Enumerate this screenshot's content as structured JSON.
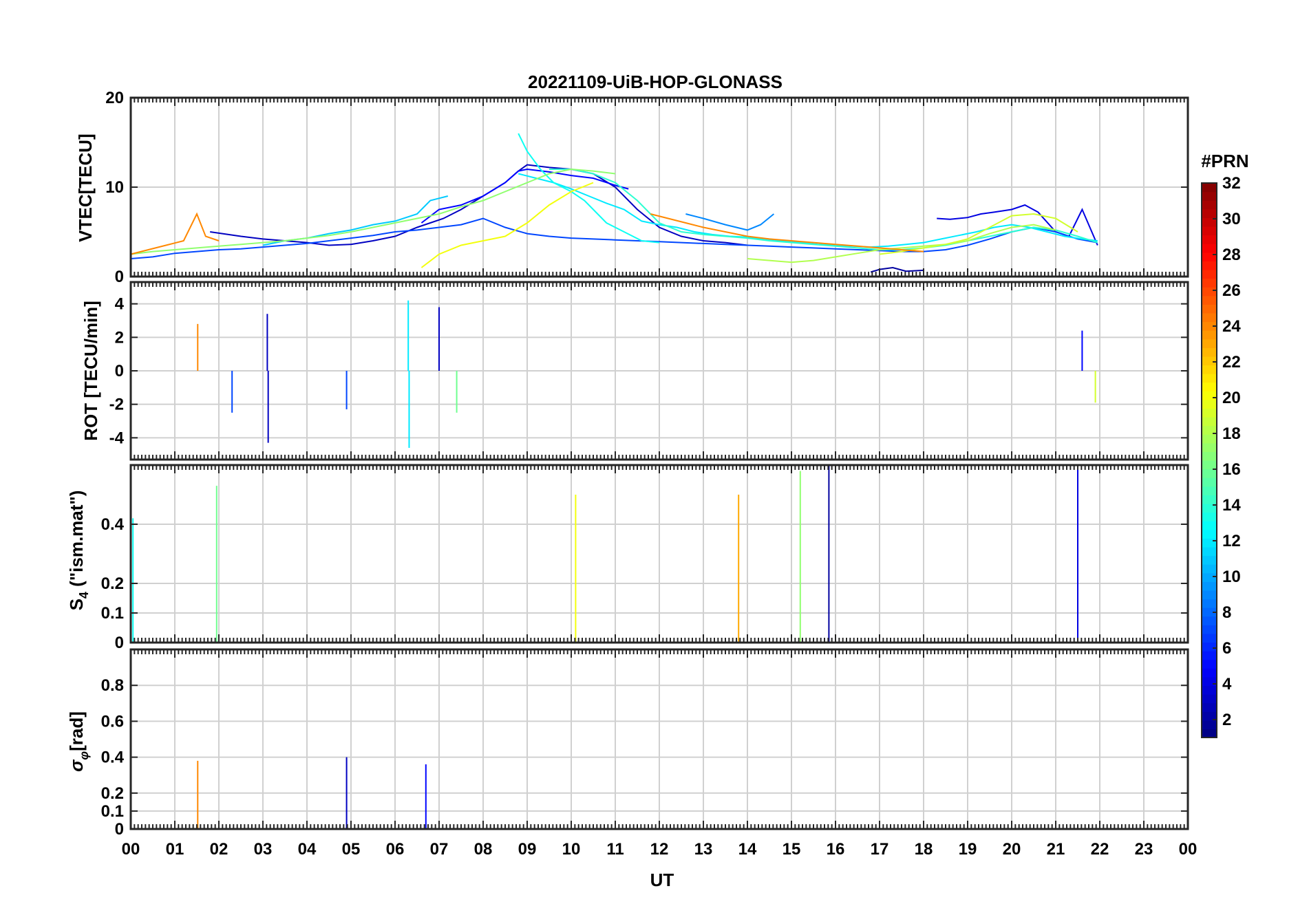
{
  "chart_data": {
    "type": "line",
    "title": "20221109-UiB-HOP-GLONASS",
    "xlabel": "UT",
    "xlim": [
      0,
      24
    ],
    "x_tick_labels": [
      "00",
      "01",
      "02",
      "03",
      "04",
      "05",
      "06",
      "07",
      "08",
      "09",
      "10",
      "11",
      "12",
      "13",
      "14",
      "15",
      "16",
      "17",
      "18",
      "19",
      "20",
      "21",
      "22",
      "23",
      "00"
    ],
    "grid": true,
    "colorbar": {
      "title": "#PRN",
      "range": [
        1,
        32
      ],
      "ticks": [
        2,
        4,
        6,
        8,
        10,
        12,
        14,
        16,
        18,
        20,
        22,
        24,
        26,
        28,
        30,
        32
      ],
      "colormap": "jet"
    },
    "panels": [
      {
        "ylabel": "VTEC[TECU]",
        "ylim": [
          0,
          20
        ],
        "yticks": [
          0,
          10,
          20
        ],
        "series": [
          {
            "prn": 3,
            "x": [
              1.8,
              2.5,
              3.0,
              3.5,
              4.0,
              4.5,
              5.0,
              5.5,
              6.0,
              6.5,
              6.8,
              7.1,
              7.5,
              8.0,
              8.5,
              8.8,
              9.0,
              9.5,
              10.0,
              10.5,
              11.0,
              11.5,
              12.0,
              12.5,
              13.0,
              13.5,
              14.0
            ],
            "y": [
              5.0,
              4.5,
              4.2,
              4.0,
              3.8,
              3.5,
              3.6,
              4.0,
              4.5,
              5.5,
              6.0,
              6.5,
              7.5,
              9.0,
              10.5,
              11.8,
              12.5,
              12.2,
              12.0,
              11.5,
              10.0,
              7.5,
              5.5,
              4.5,
              4.0,
              3.8,
              3.5
            ]
          },
          {
            "prn": 5,
            "x": [
              6.6,
              7.0,
              7.5,
              8.0,
              8.5,
              8.8,
              9.0,
              9.5,
              10.0,
              10.5,
              11.0,
              11.3
            ],
            "y": [
              6.0,
              7.5,
              8.0,
              9.0,
              10.5,
              11.8,
              12.0,
              11.7,
              11.3,
              11.0,
              10.2,
              9.8
            ]
          },
          {
            "prn": 2,
            "x": [
              16.8,
              17.0,
              17.3,
              17.6,
              18.0
            ],
            "y": [
              0.5,
              0.8,
              1.0,
              0.6,
              0.7
            ]
          },
          {
            "prn": 4,
            "x": [
              18.3,
              18.6,
              19.0,
              19.3,
              19.6,
              20.0,
              20.3,
              20.6,
              21.0,
              21.3,
              21.6,
              21.95
            ],
            "y": [
              6.5,
              6.4,
              6.6,
              7.0,
              7.2,
              7.5,
              8.0,
              7.2,
              5.0,
              4.5,
              7.5,
              3.5
            ]
          },
          {
            "prn": 7,
            "x": [
              0.0,
              0.5,
              1.0,
              1.5,
              2.0,
              2.5,
              3.0,
              3.5,
              4.0,
              4.5,
              5.0,
              5.5,
              6.0,
              6.5,
              7.0,
              7.5,
              8.0,
              8.5,
              9.0,
              9.5,
              10.0,
              10.5,
              11.0,
              11.5,
              12.0,
              12.5,
              13.0,
              13.5,
              14.0,
              14.5,
              15.0,
              15.5,
              16.0,
              16.5,
              17.0,
              17.5,
              18.0,
              18.5,
              19.0,
              19.5,
              20.0,
              20.5,
              21.0,
              21.5,
              21.95
            ],
            "y": [
              2.0,
              2.2,
              2.6,
              2.8,
              3.0,
              3.1,
              3.3,
              3.5,
              3.7,
              4.0,
              4.3,
              4.6,
              5.0,
              5.2,
              5.5,
              5.8,
              6.5,
              5.5,
              4.8,
              4.5,
              4.3,
              4.2,
              4.1,
              4.0,
              3.9,
              3.8,
              3.7,
              3.6,
              3.5,
              3.4,
              3.3,
              3.2,
              3.1,
              3.0,
              2.9,
              2.8,
              2.8,
              3.0,
              3.5,
              4.2,
              5.0,
              5.5,
              5.0,
              4.2,
              3.8
            ]
          },
          {
            "prn": 9,
            "x": [
              12.6,
              13.0,
              13.5,
              14.0,
              14.3,
              14.6
            ],
            "y": [
              7.0,
              6.5,
              5.8,
              5.2,
              5.8,
              7.0
            ]
          },
          {
            "prn": 11,
            "x": [
              3.0,
              3.5,
              4.0,
              4.5,
              5.0,
              5.5,
              6.0,
              6.5,
              6.8,
              7.2
            ],
            "y": [
              3.5,
              4.0,
              4.3,
              4.8,
              5.2,
              5.8,
              6.2,
              7.0,
              8.5,
              9.0
            ]
          },
          {
            "prn": 12,
            "x": [
              8.8,
              9.2,
              9.6,
              10.0,
              10.4,
              10.8,
              11.2,
              11.6,
              12.0,
              12.4,
              12.8,
              13.2,
              13.6,
              14.0,
              14.4,
              14.8,
              15.2,
              15.6,
              16.0,
              16.4,
              16.8,
              17.2,
              17.6,
              18.0,
              18.4,
              18.8,
              19.2,
              19.6,
              20.0,
              20.4,
              20.8,
              21.2,
              21.6,
              21.95
            ],
            "y": [
              11.5,
              11.0,
              10.5,
              9.8,
              9.0,
              8.2,
              7.5,
              6.2,
              5.8,
              5.5,
              5.0,
              4.7,
              4.5,
              4.4,
              4.2,
              4.0,
              3.8,
              3.6,
              3.5,
              3.4,
              3.3,
              3.4,
              3.6,
              3.8,
              4.2,
              4.6,
              5.0,
              5.5,
              5.8,
              5.5,
              5.0,
              4.5,
              4.2,
              4.0
            ]
          },
          {
            "prn": 13,
            "x": [
              8.8,
              9.0,
              9.3,
              9.6,
              10.0,
              10.3,
              10.5,
              10.8,
              11.2,
              11.6,
              12.0
            ],
            "y": [
              16.0,
              14.0,
              12.0,
              10.5,
              9.5,
              8.5,
              7.5,
              6.0,
              5.0,
              4.0,
              3.8
            ]
          },
          {
            "prn": 14,
            "x": [
              9.5,
              10.0,
              10.5,
              11.0,
              11.5,
              12.0,
              12.5,
              13.0,
              13.5,
              14.0,
              14.5,
              15.0,
              15.5,
              16.0,
              16.5,
              17.0,
              17.5,
              18.0,
              18.5,
              19.0,
              19.5,
              20.0,
              20.5,
              21.0,
              21.5,
              21.95
            ],
            "y": [
              12.0,
              12.0,
              11.5,
              10.5,
              8.5,
              6.0,
              5.0,
              4.7,
              4.5,
              4.3,
              4.0,
              3.8,
              3.6,
              3.4,
              3.2,
              3.0,
              3.0,
              3.2,
              3.5,
              4.0,
              4.5,
              5.0,
              5.5,
              5.2,
              4.5,
              3.8
            ]
          },
          {
            "prn": 17,
            "x": [
              0.0,
              0.5,
              1.0,
              1.5,
              2.0,
              2.5,
              3.0,
              3.5,
              4.0,
              4.5,
              5.0,
              5.5,
              6.0,
              6.5,
              7.0,
              7.5,
              8.0,
              8.5,
              9.0,
              9.5,
              10.0,
              10.5,
              11.0
            ],
            "y": [
              2.5,
              2.8,
              3.0,
              3.2,
              3.4,
              3.6,
              3.8,
              4.0,
              4.3,
              4.6,
              5.0,
              5.5,
              6.0,
              6.5,
              7.0,
              7.8,
              8.5,
              9.5,
              10.5,
              11.5,
              12.0,
              11.8,
              11.5
            ]
          },
          {
            "prn": 18,
            "x": [
              14.0,
              14.5,
              15.0,
              15.5,
              16.0,
              16.5,
              17.0,
              17.5,
              18.0,
              18.5,
              19.0,
              19.5,
              20.0,
              20.5,
              21.0
            ],
            "y": [
              2.0,
              1.8,
              1.6,
              1.8,
              2.2,
              2.6,
              3.0,
              3.2,
              3.4,
              3.6,
              4.0,
              4.8,
              5.5,
              5.8,
              5.2
            ]
          },
          {
            "prn": 20,
            "x": [
              6.6,
              7.0,
              7.5,
              8.0,
              8.5,
              9.0,
              9.5,
              10.0,
              10.5
            ],
            "y": [
              1.0,
              2.5,
              3.5,
              4.0,
              4.5,
              6.0,
              8.0,
              9.5,
              10.5
            ]
          },
          {
            "prn": 19,
            "x": [
              17.0,
              17.5,
              18.0,
              18.5,
              19.0,
              19.5,
              20.0,
              20.5,
              21.0,
              21.5
            ],
            "y": [
              2.5,
              2.8,
              3.2,
              3.6,
              4.2,
              5.5,
              6.8,
              7.0,
              6.5,
              5.0
            ]
          },
          {
            "prn": 24,
            "x": [
              0.0,
              0.4,
              0.8,
              1.2,
              1.5,
              1.7,
              2.0
            ],
            "y": [
              2.5,
              3.0,
              3.5,
              4.0,
              7.0,
              4.5,
              4.0
            ]
          },
          {
            "prn": 24,
            "x": [
              11.8,
              12.2,
              12.6,
              13.0,
              13.5,
              14.0,
              14.5,
              15.0,
              15.5,
              16.0,
              16.5,
              17.0,
              17.5,
              18.0
            ],
            "y": [
              7.0,
              6.5,
              6.0,
              5.5,
              5.0,
              4.5,
              4.2,
              4.0,
              3.8,
              3.6,
              3.4,
              3.2,
              3.0,
              2.8
            ]
          }
        ]
      },
      {
        "ylabel": "ROT [TECU/min]",
        "ylim": [
          -5.3,
          5.3
        ],
        "yticks": [
          -4,
          -2,
          0,
          2,
          4
        ],
        "annotations": [
          {
            "prn": 24,
            "x": 1.52,
            "y": 2.8
          },
          {
            "prn": 3,
            "x": 3.1,
            "y": 3.4
          },
          {
            "prn": 3,
            "x": 3.12,
            "y": -4.3
          },
          {
            "prn": 12,
            "x": 6.3,
            "y": 4.2
          },
          {
            "prn": 12,
            "x": 6.32,
            "y": -4.6
          },
          {
            "prn": 3,
            "x": 7.0,
            "y": 3.8
          },
          {
            "prn": 16,
            "x": 7.4,
            "y": -2.5
          },
          {
            "prn": 7,
            "x": 2.3,
            "y": -2.5
          },
          {
            "prn": 7,
            "x": 4.9,
            "y": -2.3
          },
          {
            "prn": 5,
            "x": 21.6,
            "y": 2.4
          },
          {
            "prn": 19,
            "x": 21.9,
            "y": -1.9
          }
        ]
      },
      {
        "ylabel": "S4 (\"ism.mat\")",
        "ylim": [
          0,
          0.6
        ],
        "yticks": [
          0,
          0.1,
          0.2,
          0.4
        ],
        "annotations": [
          {
            "prn": 16,
            "x": 1.95,
            "y": 0.53
          },
          {
            "prn": 23,
            "x": 13.8,
            "y": 0.5
          },
          {
            "prn": 17,
            "x": 15.2,
            "y": 0.58
          },
          {
            "prn": 2,
            "x": 15.85,
            "y": 0.6
          },
          {
            "prn": 4,
            "x": 21.5,
            "y": 0.6
          },
          {
            "prn": 20,
            "x": 10.1,
            "y": 0.5
          },
          {
            "prn": 13,
            "x": 0.05,
            "y": 0.42
          }
        ]
      },
      {
        "ylabel": "σφ[rad]",
        "ylim": [
          0,
          1
        ],
        "yticks": [
          0,
          0.1,
          0.2,
          0.4,
          0.6,
          0.8
        ],
        "annotations": [
          {
            "prn": 24,
            "x": 1.52,
            "y": 0.38
          },
          {
            "prn": 3,
            "x": 4.9,
            "y": 0.4
          },
          {
            "prn": 5,
            "x": 6.7,
            "y": 0.36
          }
        ]
      }
    ]
  }
}
